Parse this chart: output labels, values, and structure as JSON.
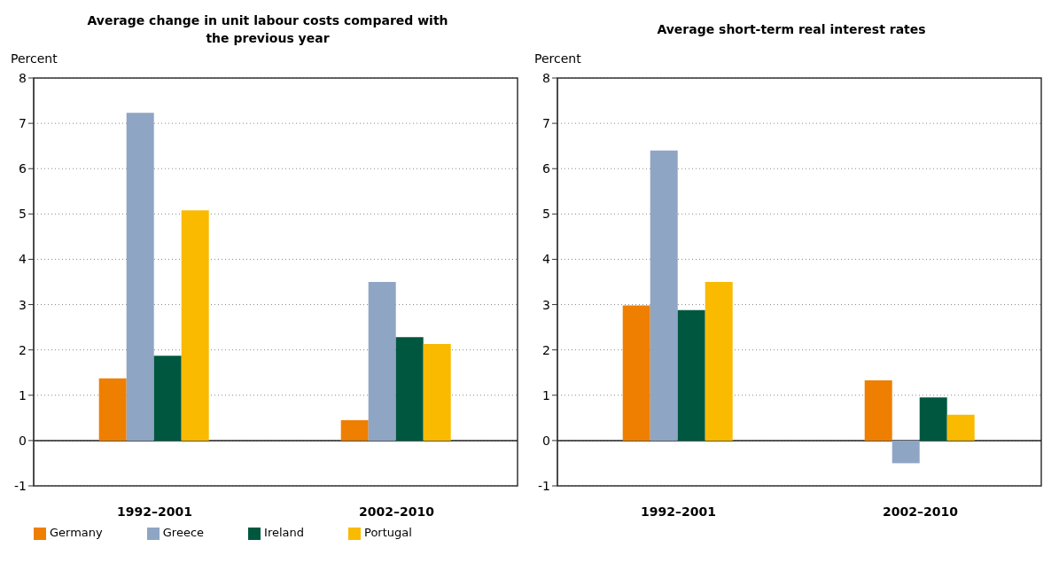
{
  "chart_data": [
    {
      "type": "bar",
      "title": "Average change in unit labour costs compared with the previous year",
      "ylabel": "Percent",
      "categories": [
        "1992–2001",
        "2002–2010"
      ],
      "series": [
        {
          "name": "Germany",
          "color": "#ee7f00",
          "values": [
            1.37,
            0.45
          ]
        },
        {
          "name": "Greece",
          "color": "#8fa5c4",
          "values": [
            7.23,
            3.5
          ]
        },
        {
          "name": "Ireland",
          "color": "#005740",
          "values": [
            1.87,
            2.28
          ]
        },
        {
          "name": "Portugal",
          "color": "#f9ba00",
          "values": [
            5.08,
            2.13
          ]
        }
      ],
      "ylim": [
        -1,
        8
      ],
      "yticks": [
        -1,
        0,
        1,
        2,
        3,
        4,
        5,
        6,
        7,
        8
      ],
      "grid": "y",
      "legend": "bottom"
    },
    {
      "type": "bar",
      "title": "Average short-term real interest rates",
      "ylabel": "Percent",
      "categories": [
        "1992–2001",
        "2002–2010"
      ],
      "series": [
        {
          "color": "#ee7f00",
          "values": [
            2.98,
            1.33
          ]
        },
        {
          "color": "#8fa5c4",
          "values": [
            6.4,
            -0.5
          ]
        },
        {
          "color": "#005740",
          "values": [
            2.88,
            0.95
          ]
        },
        {
          "color": "#f9ba00",
          "values": [
            3.5,
            0.57
          ]
        }
      ],
      "ylim": [
        -1,
        8
      ],
      "yticks": [
        -1,
        0,
        1,
        2,
        3,
        4,
        5,
        6,
        7,
        8
      ],
      "grid": "y"
    }
  ]
}
